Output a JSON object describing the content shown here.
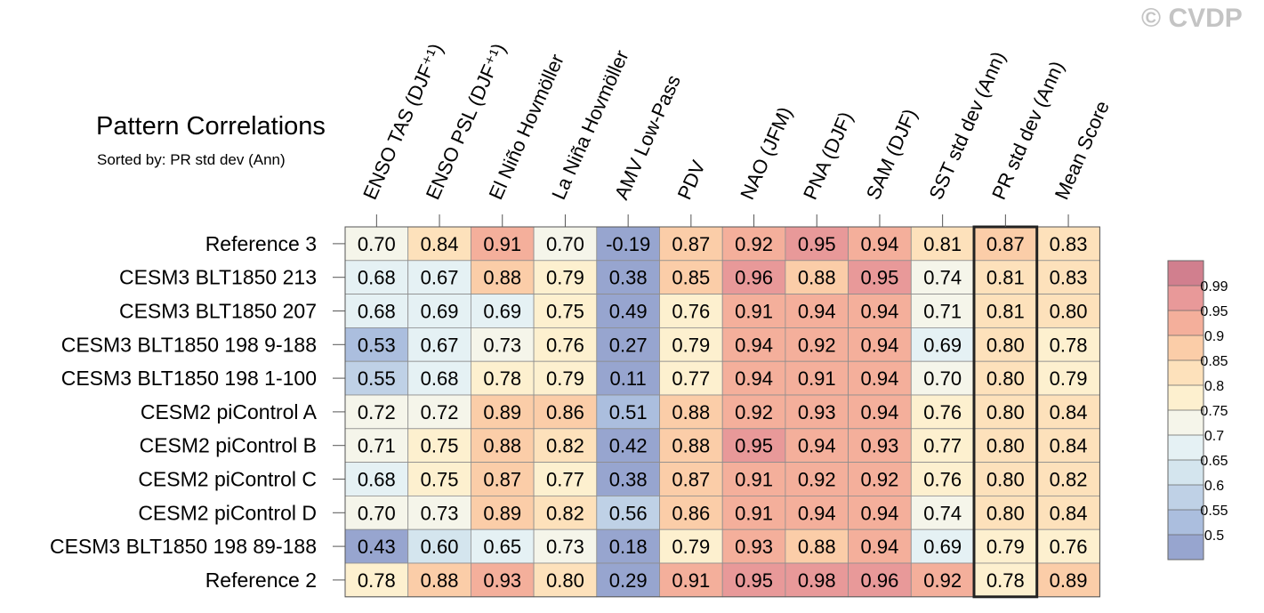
{
  "watermark": "© CVDP",
  "chart_data": {
    "type": "heatmap",
    "title": "Pattern Correlations",
    "subtitle": "Sorted by: PR std dev (Ann)",
    "columns": [
      "ENSO TAS (DJF⁺¹)",
      "ENSO PSL (DJF⁺¹)",
      "El Niño Hovmöller",
      "La Niña Hovmöller",
      "AMV Low-Pass",
      "PDV",
      "NAO (JFM)",
      "PNA (DJF)",
      "SAM (DJF)",
      "SST std dev (Ann)",
      "PR std dev (Ann)",
      "Mean Score"
    ],
    "rows": [
      "Reference 3",
      "CESM3 BLT1850 213",
      "CESM3 BLT1850 207",
      "CESM3 BLT1850 198 9-188",
      "CESM3 BLT1850 198 1-100",
      "CESM2 piControl A",
      "CESM2 piControl B",
      "CESM2 piControl C",
      "CESM2 piControl D",
      "CESM3 BLT1850 198 89-188",
      "Reference 2"
    ],
    "values": [
      [
        "0.70",
        "0.84",
        "0.91",
        "0.70",
        "-0.19",
        "0.87",
        "0.92",
        "0.95",
        "0.94",
        "0.81",
        "0.87",
        "0.83"
      ],
      [
        "0.68",
        "0.67",
        "0.88",
        "0.79",
        "0.38",
        "0.85",
        "0.96",
        "0.88",
        "0.95",
        "0.74",
        "0.81",
        "0.83"
      ],
      [
        "0.68",
        "0.69",
        "0.69",
        "0.75",
        "0.49",
        "0.76",
        "0.91",
        "0.94",
        "0.94",
        "0.71",
        "0.81",
        "0.80"
      ],
      [
        "0.53",
        "0.67",
        "0.73",
        "0.76",
        "0.27",
        "0.79",
        "0.94",
        "0.92",
        "0.94",
        "0.69",
        "0.80",
        "0.78"
      ],
      [
        "0.55",
        "0.68",
        "0.78",
        "0.79",
        "0.11",
        "0.77",
        "0.94",
        "0.91",
        "0.94",
        "0.70",
        "0.80",
        "0.79"
      ],
      [
        "0.72",
        "0.72",
        "0.89",
        "0.86",
        "0.51",
        "0.88",
        "0.92",
        "0.93",
        "0.94",
        "0.76",
        "0.80",
        "0.84"
      ],
      [
        "0.71",
        "0.75",
        "0.88",
        "0.82",
        "0.42",
        "0.88",
        "0.95",
        "0.94",
        "0.93",
        "0.77",
        "0.80",
        "0.84"
      ],
      [
        "0.68",
        "0.75",
        "0.87",
        "0.77",
        "0.38",
        "0.87",
        "0.91",
        "0.92",
        "0.92",
        "0.76",
        "0.80",
        "0.82"
      ],
      [
        "0.70",
        "0.73",
        "0.89",
        "0.82",
        "0.56",
        "0.86",
        "0.91",
        "0.94",
        "0.94",
        "0.74",
        "0.80",
        "0.84"
      ],
      [
        "0.43",
        "0.60",
        "0.65",
        "0.73",
        "0.18",
        "0.79",
        "0.93",
        "0.88",
        "0.94",
        "0.69",
        "0.79",
        "0.76"
      ],
      [
        "0.78",
        "0.88",
        "0.93",
        "0.80",
        "0.29",
        "0.91",
        "0.95",
        "0.98",
        "0.96",
        "0.92",
        "0.78",
        "0.89"
      ]
    ],
    "highlighted_column": "PR std dev (Ann)",
    "colorbar": {
      "levels": [
        0.5,
        0.55,
        0.6,
        0.65,
        0.7,
        0.75,
        0.8,
        0.85,
        0.9,
        0.95,
        0.99
      ],
      "labels": [
        "0.5",
        "0.55",
        "0.6",
        "0.65",
        "0.7",
        "0.75",
        "0.8",
        "0.85",
        "0.9",
        "0.95",
        "0.99"
      ],
      "colors": [
        "#97a5cf",
        "#abbede",
        "#bfd1e6",
        "#d4e5ee",
        "#e5f1f4",
        "#f5f5ea",
        "#fdf0cf",
        "#fde1bb",
        "#fbcda8",
        "#f4af9b",
        "#e89999",
        "#d17f8e"
      ]
    }
  }
}
